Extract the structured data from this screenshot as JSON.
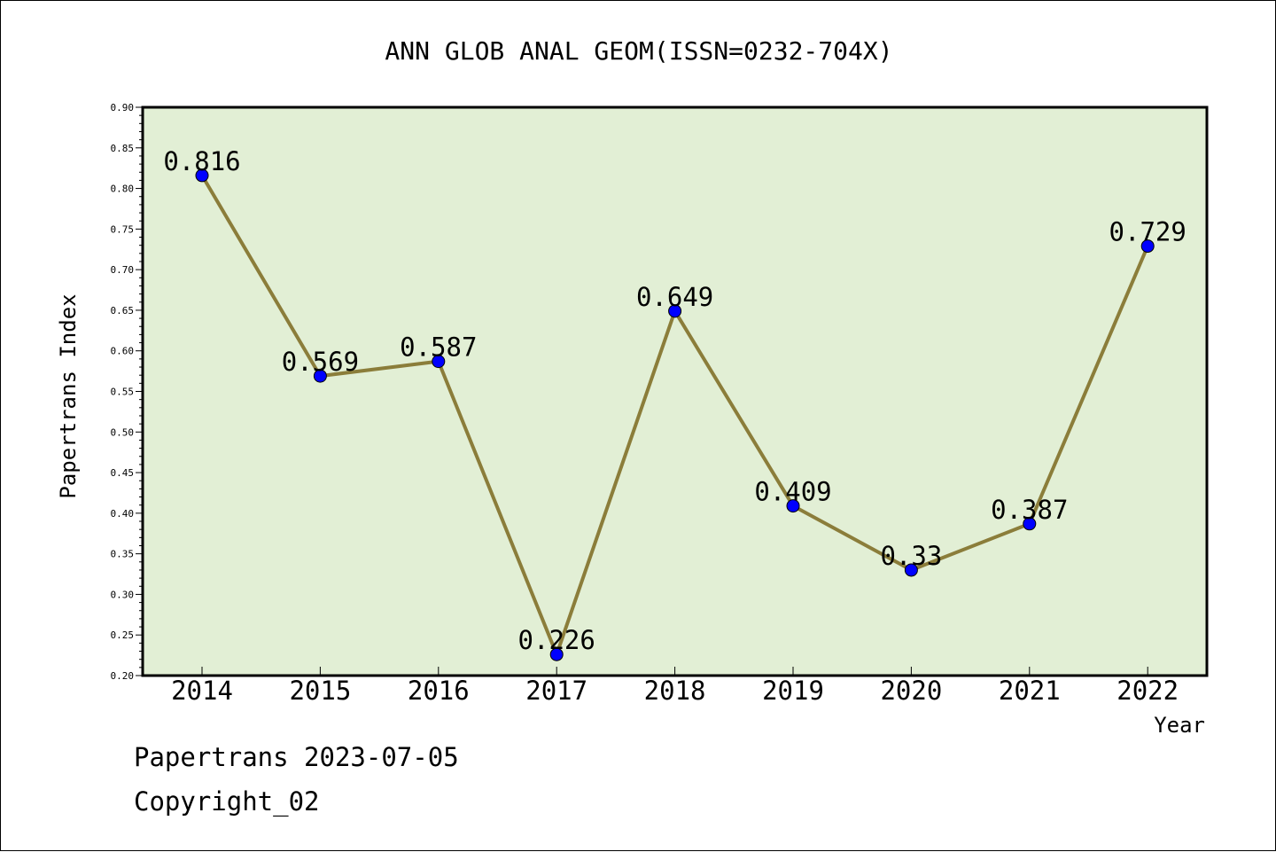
{
  "chart_data": {
    "type": "line",
    "title": "ANN GLOB ANAL GEOM(ISSN=0232-704X)",
    "xlabel": "Year",
    "ylabel": "Papertrans Index",
    "categories": [
      "2014",
      "2015",
      "2016",
      "2017",
      "2018",
      "2019",
      "2020",
      "2021",
      "2022"
    ],
    "values": [
      0.816,
      0.569,
      0.587,
      0.226,
      0.649,
      0.409,
      0.33,
      0.387,
      0.729
    ],
    "data_labels": [
      "0.816",
      "0.569",
      "0.587",
      "0.226",
      "0.649",
      "0.409",
      "0.33",
      "0.387",
      "0.729"
    ],
    "ylim": [
      0.2,
      0.9
    ],
    "yticks": [
      "0.20",
      "0.25",
      "0.30",
      "0.35",
      "0.40",
      "0.45",
      "0.50",
      "0.55",
      "0.60",
      "0.65",
      "0.70",
      "0.75",
      "0.80",
      "0.85",
      "0.90"
    ],
    "grid": false,
    "legend": "none",
    "colors": {
      "line": "#8b7d3a",
      "marker": "#0000ff",
      "plot_background": "#e2efd5"
    }
  },
  "footer": {
    "source": "Papertrans 2023-07-05",
    "copyright": "Copyright_02"
  }
}
